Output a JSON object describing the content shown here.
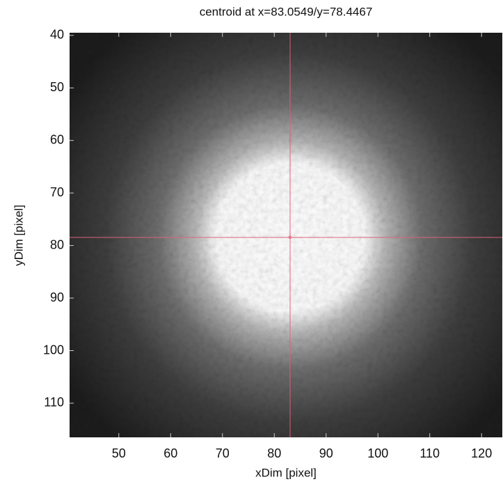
{
  "chart_data": {
    "type": "image",
    "title": "centroid at x=83.0549/y=78.4467",
    "x_label": "xDim [pixel]",
    "y_label": "yDim [pixel]",
    "xlim": [
      40.5,
      124
    ],
    "ylim": [
      39.5,
      116.5
    ],
    "y_inverted": true,
    "xticks": [
      50,
      60,
      70,
      80,
      90,
      100,
      110,
      120
    ],
    "yticks": [
      40,
      50,
      60,
      70,
      80,
      90,
      100,
      110
    ],
    "centroid": {
      "x": 83.0549,
      "y": 78.4467
    },
    "crosshair_color": "#e0607c",
    "colormap": "gray"
  }
}
